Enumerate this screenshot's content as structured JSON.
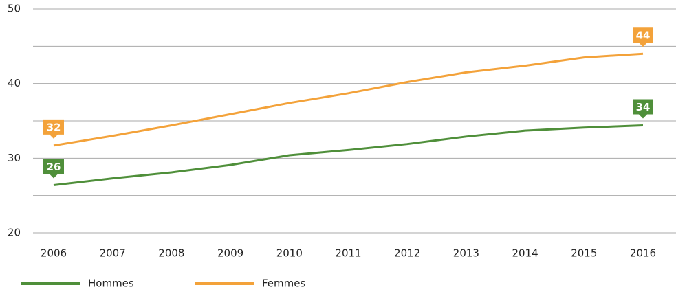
{
  "chart_data": {
    "type": "line",
    "categories": [
      "2006",
      "2007",
      "2008",
      "2009",
      "2010",
      "2011",
      "2012",
      "2013",
      "2014",
      "2015",
      "2016"
    ],
    "series": [
      {
        "name": "Hommes",
        "color": "#4f8f3a",
        "values": [
          26.4,
          27.3,
          28.1,
          29.1,
          30.4,
          31.1,
          31.9,
          32.9,
          33.7,
          34.1,
          34.4
        ],
        "value_labels": [
          "26",
          null,
          null,
          null,
          null,
          null,
          null,
          null,
          null,
          null,
          "34"
        ]
      },
      {
        "name": "Femmes",
        "color": "#f3a23a",
        "values": [
          31.7,
          33.0,
          34.4,
          35.9,
          37.4,
          38.7,
          40.2,
          41.5,
          42.4,
          43.5,
          44.0
        ],
        "value_labels": [
          "32",
          null,
          null,
          null,
          null,
          null,
          null,
          null,
          null,
          null,
          "44"
        ]
      }
    ],
    "ylim": [
      20,
      50
    ],
    "yticks": [
      20,
      30,
      40,
      50
    ],
    "yticks_minor": [
      25,
      35,
      45
    ],
    "grid": true,
    "legend": "bottom"
  }
}
